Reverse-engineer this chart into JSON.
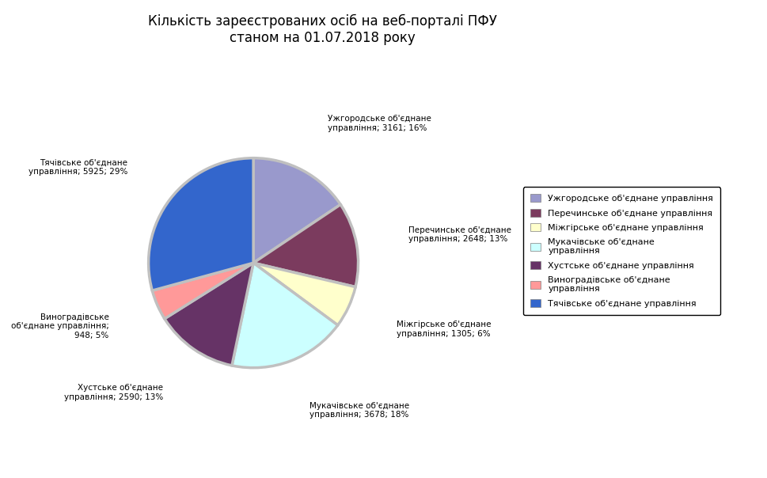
{
  "title": "Кількість зареєстрованих осіб на веб-порталі ПФУ\nстаном на 01.07.2018 року",
  "legend_labels": [
    "Ужгородське об'єднане управління",
    "Перечинське об'єднане управління",
    "Міжгірське об'єднане управління",
    "Мукачівське об'єднане\nуправління",
    "Хустське об'єднане управління",
    "Виноградівське об'єднане\nуправління",
    "Тячівське об'єднане управління"
  ],
  "label_texts": [
    "Ужгородське об'єднане\nуправління; 3161; 16%",
    "Перечинське об'єднане\nуправління; 2648; 13%",
    "Міжгірське об'єднане\nуправління; 1305; 6%",
    "Мукачівське об'єднане\nуправління; 3678; 18%",
    "Хустське об'єднане\nуправління; 2590; 13%",
    "Виноградівське\nоб'єднане управління;\n948; 5%",
    "Тячівське об'єднане\nуправління; 5925; 29%"
  ],
  "values": [
    3161,
    2648,
    1305,
    3678,
    2590,
    948,
    5925
  ],
  "colors": [
    "#9999CC",
    "#7B3B5E",
    "#FFFFCC",
    "#CCFFFF",
    "#663366",
    "#FF9999",
    "#3366CC"
  ],
  "bg_color": "#C0C0C0",
  "startangle": 90,
  "title_fontsize": 12,
  "label_fontsize": 8,
  "legend_fontsize": 8
}
